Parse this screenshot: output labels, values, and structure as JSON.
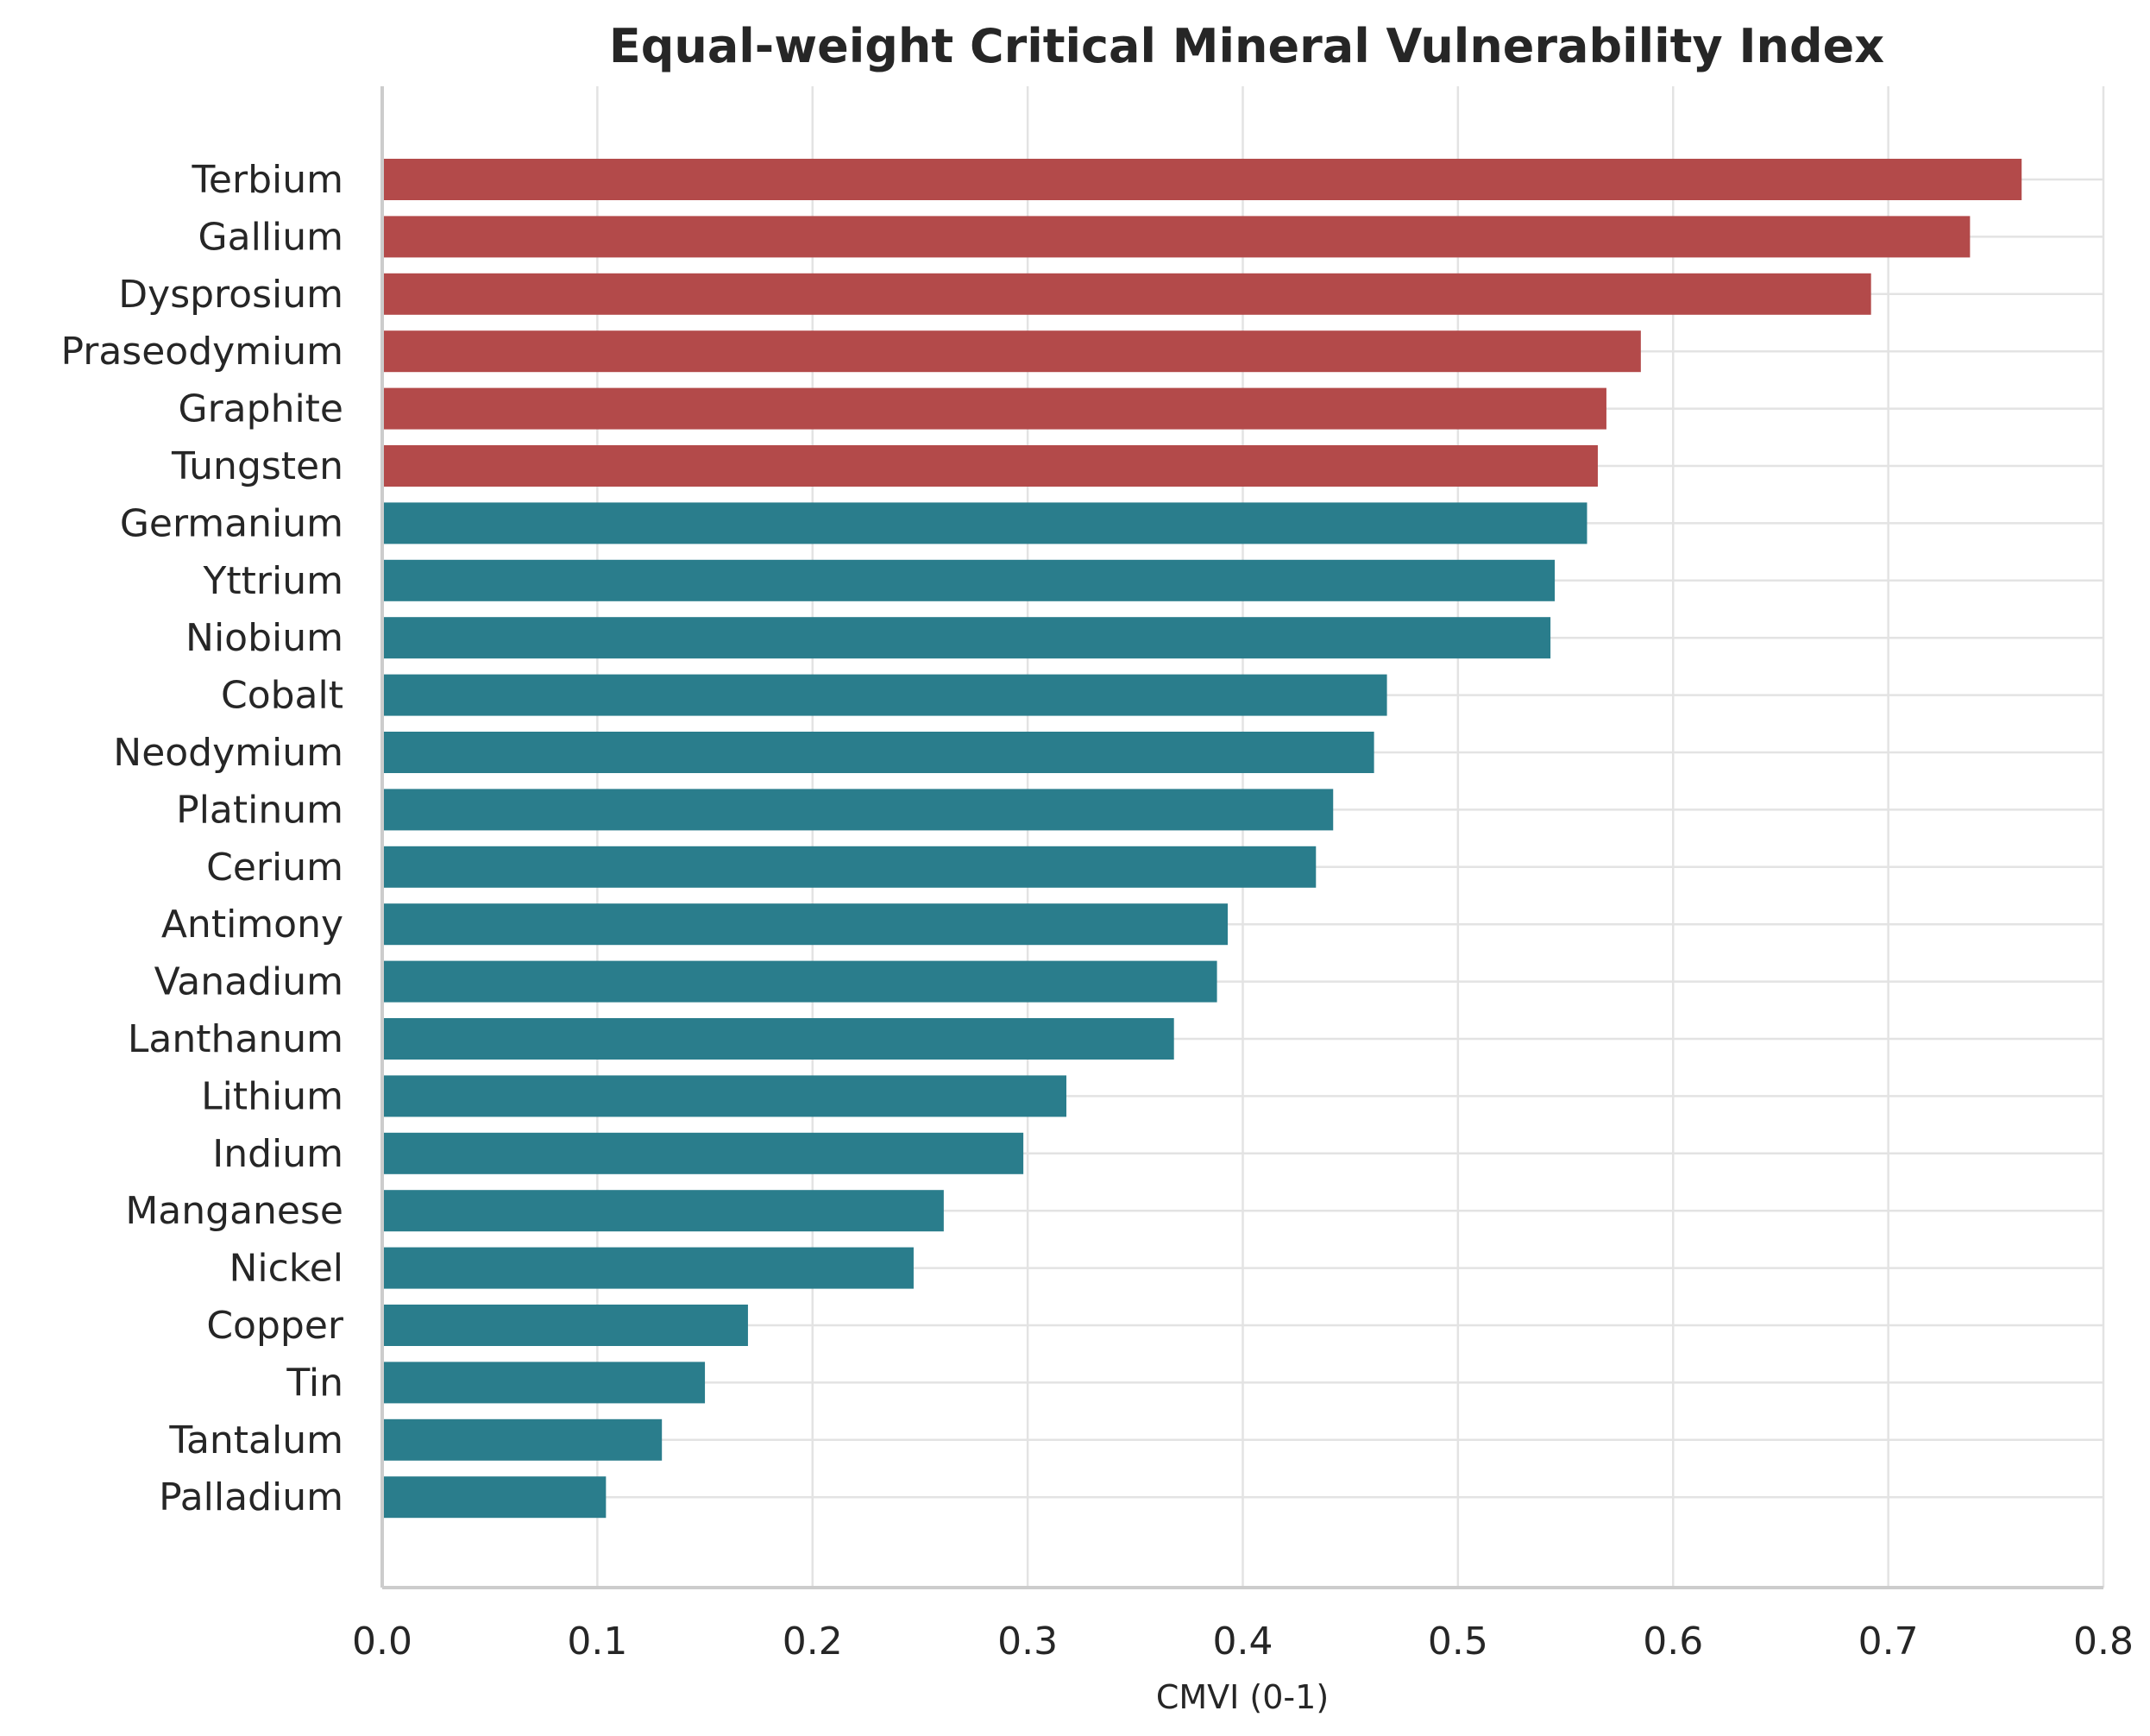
{
  "chart_data": {
    "type": "bar",
    "orientation": "horizontal",
    "title": "Equal-weight Critical Mineral Vulnerability Index",
    "xlabel": "CMVI (0-1)",
    "ylabel": "",
    "xlim": [
      0,
      0.8
    ],
    "xticks": [
      "0.0",
      "0.1",
      "0.2",
      "0.3",
      "0.4",
      "0.5",
      "0.6",
      "0.7",
      "0.8"
    ],
    "grid": true,
    "colors": {
      "high": "#b34a4a",
      "normal": "#2a7d8c"
    },
    "categories": [
      "Terbium",
      "Gallium",
      "Dysprosium",
      "Praseodymium",
      "Graphite",
      "Tungsten",
      "Germanium",
      "Yttrium",
      "Niobium",
      "Cobalt",
      "Neodymium",
      "Platinum",
      "Cerium",
      "Antimony",
      "Vanadium",
      "Lanthanum",
      "Lithium",
      "Indium",
      "Manganese",
      "Nickel",
      "Copper",
      "Tin",
      "Tantalum",
      "Palladium"
    ],
    "values": [
      0.762,
      0.738,
      0.692,
      0.585,
      0.569,
      0.565,
      0.56,
      0.545,
      0.543,
      0.467,
      0.461,
      0.442,
      0.434,
      0.393,
      0.388,
      0.368,
      0.318,
      0.298,
      0.261,
      0.247,
      0.17,
      0.15,
      0.13,
      0.104
    ],
    "highlight": [
      true,
      true,
      true,
      true,
      true,
      true,
      false,
      false,
      false,
      false,
      false,
      false,
      false,
      false,
      false,
      false,
      false,
      false,
      false,
      false,
      false,
      false,
      false,
      false
    ]
  }
}
